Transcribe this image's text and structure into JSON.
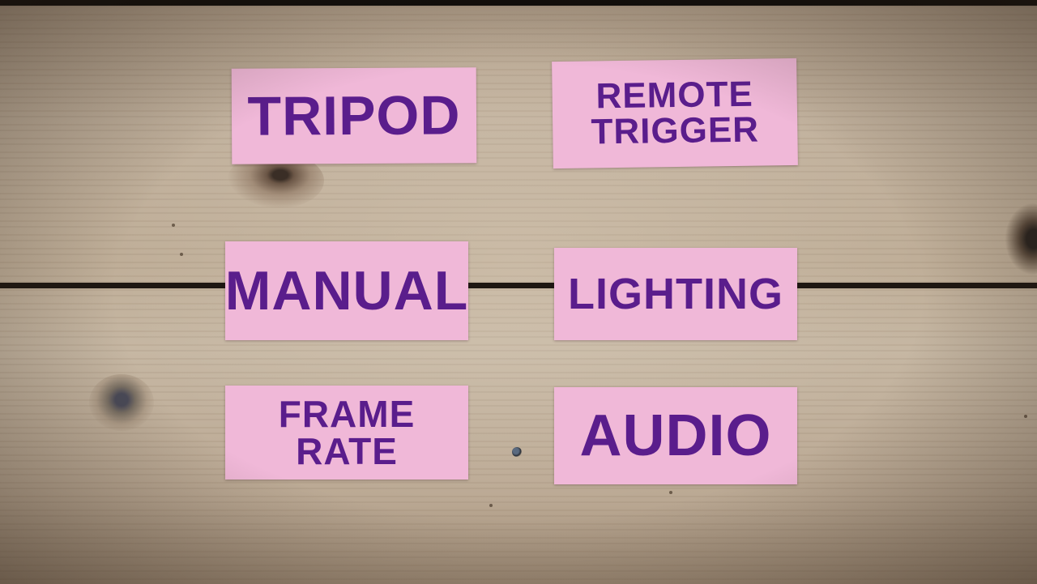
{
  "scene": {
    "background": "wooden-planks",
    "note_color": "#f0b8d8",
    "ink_color": "#5a1d8c"
  },
  "notes": [
    {
      "label": "Tripod"
    },
    {
      "label": "Remote Trigger"
    },
    {
      "label": "Manual"
    },
    {
      "label": "Lighting"
    },
    {
      "label": "Frame Rate"
    },
    {
      "label": "Audio"
    }
  ]
}
